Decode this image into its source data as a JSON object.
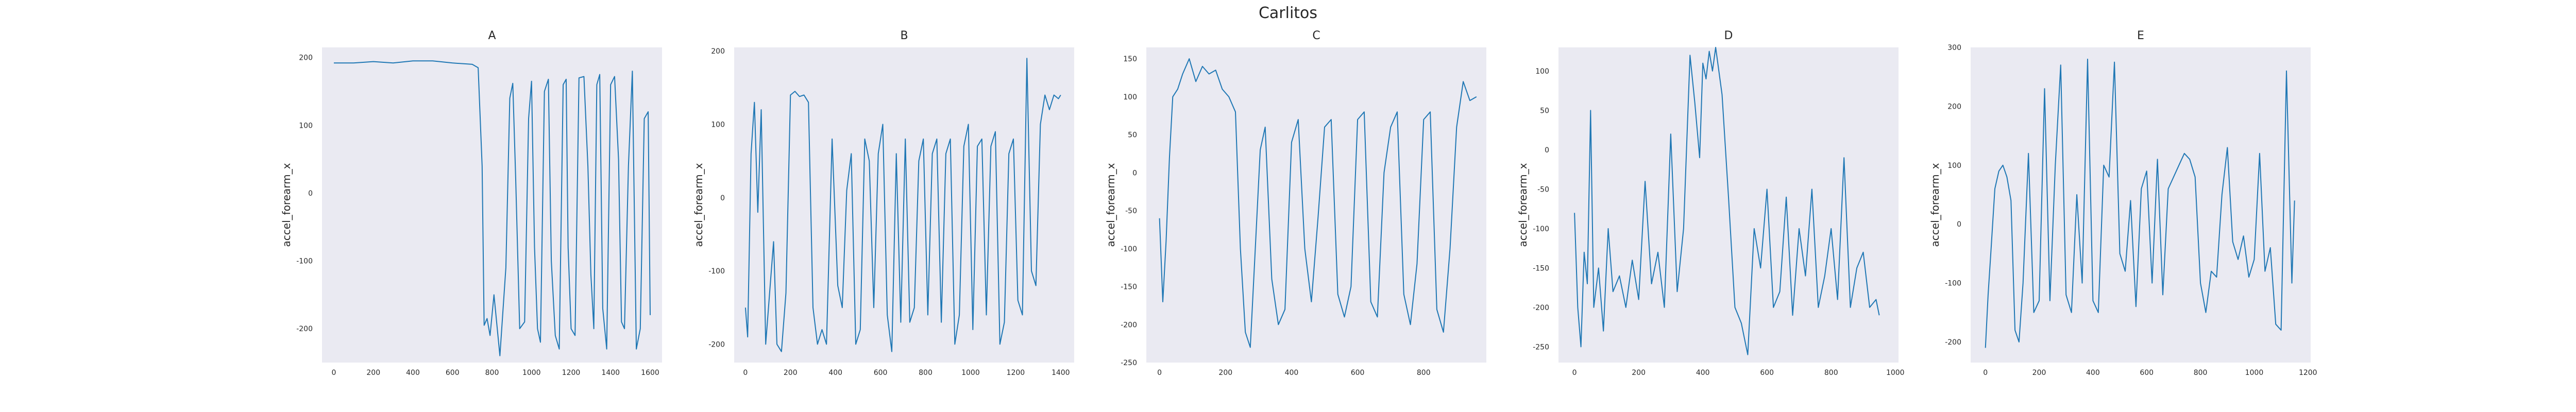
{
  "figure": {
    "title": "Carlitos",
    "background": "#ffffff",
    "plot_bg": "#eaeaf2",
    "line_color": "#1f77b4"
  },
  "chart_data": [
    {
      "type": "line",
      "title": "A",
      "xlabel": "",
      "ylabel": "accel_forearm_x",
      "xlim": [
        -60,
        1660
      ],
      "ylim": [
        -250,
        215
      ],
      "xticks": [
        0,
        200,
        400,
        600,
        800,
        1000,
        1200,
        1400,
        1600
      ],
      "yticks": [
        -200,
        -100,
        0,
        100,
        200
      ],
      "grid": false,
      "series": [
        {
          "x": [
            0,
            100,
            200,
            300,
            400,
            500,
            600,
            700,
            730,
            750,
            760,
            775,
            790,
            810,
            840,
            870,
            890,
            905,
            920,
            940,
            965,
            985,
            1000,
            1015,
            1030,
            1045,
            1065,
            1085,
            1100,
            1120,
            1140,
            1160,
            1175,
            1185,
            1200,
            1220,
            1240,
            1265,
            1285,
            1300,
            1315,
            1330,
            1345,
            1360,
            1380,
            1400,
            1420,
            1440,
            1455,
            1470,
            1490,
            1510,
            1530,
            1550,
            1570,
            1590,
            1600
          ],
          "values": [
            192,
            192,
            194,
            192,
            195,
            195,
            192,
            190,
            185,
            40,
            -195,
            -185,
            -210,
            -150,
            -240,
            -110,
            140,
            162,
            20,
            -200,
            -190,
            110,
            165,
            -80,
            -200,
            -220,
            150,
            168,
            -100,
            -210,
            -230,
            160,
            168,
            -80,
            -200,
            -210,
            170,
            172,
            40,
            -120,
            -200,
            160,
            175,
            -170,
            -230,
            160,
            172,
            50,
            -190,
            -200,
            40,
            180,
            -230,
            -200,
            110,
            120,
            -180
          ]
        }
      ]
    },
    {
      "type": "line",
      "title": "B",
      "xlabel": "",
      "ylabel": "accel_forearm_x",
      "xlim": [
        -50,
        1460
      ],
      "ylim": [
        -225,
        205
      ],
      "xticks": [
        0,
        200,
        400,
        600,
        800,
        1000,
        1200,
        1400
      ],
      "yticks": [
        -200,
        -100,
        0,
        100,
        200
      ],
      "grid": false,
      "series": [
        {
          "x": [
            0,
            10,
            25,
            40,
            55,
            70,
            90,
            110,
            125,
            140,
            160,
            180,
            200,
            220,
            240,
            260,
            280,
            300,
            320,
            340,
            360,
            385,
            410,
            430,
            450,
            470,
            490,
            510,
            530,
            550,
            570,
            590,
            610,
            630,
            650,
            670,
            690,
            710,
            730,
            750,
            770,
            790,
            810,
            830,
            850,
            870,
            890,
            910,
            930,
            950,
            970,
            990,
            1010,
            1030,
            1050,
            1070,
            1090,
            1110,
            1130,
            1150,
            1170,
            1190,
            1210,
            1230,
            1250,
            1270,
            1290,
            1310,
            1330,
            1350,
            1370,
            1390,
            1400
          ],
          "values": [
            -150,
            -190,
            60,
            130,
            -20,
            120,
            -200,
            -120,
            -60,
            -200,
            -210,
            -130,
            140,
            145,
            138,
            140,
            130,
            -150,
            -200,
            -180,
            -200,
            80,
            -120,
            -150,
            10,
            60,
            -200,
            -180,
            80,
            50,
            -150,
            60,
            100,
            -160,
            -210,
            60,
            -170,
            80,
            -170,
            -150,
            50,
            80,
            -160,
            60,
            80,
            -170,
            60,
            80,
            -200,
            -160,
            70,
            100,
            -180,
            70,
            80,
            -160,
            70,
            90,
            -200,
            -170,
            60,
            80,
            -140,
            -160,
            190,
            -100,
            -120,
            100,
            140,
            120,
            140,
            135,
            140
          ]
        }
      ]
    },
    {
      "type": "line",
      "title": "C",
      "xlabel": "",
      "ylabel": "accel_forearm_x",
      "xlim": [
        -40,
        990
      ],
      "ylim": [
        -250,
        165
      ],
      "xticks": [
        0,
        200,
        400,
        600,
        800
      ],
      "yticks": [
        -250,
        -200,
        -150,
        -100,
        -50,
        0,
        50,
        100,
        150
      ],
      "grid": false,
      "series": [
        {
          "x": [
            0,
            10,
            20,
            30,
            40,
            55,
            70,
            90,
            110,
            130,
            150,
            170,
            190,
            210,
            230,
            245,
            260,
            275,
            290,
            305,
            320,
            340,
            360,
            380,
            400,
            420,
            440,
            460,
            480,
            500,
            520,
            540,
            560,
            580,
            600,
            620,
            640,
            660,
            680,
            700,
            720,
            740,
            760,
            780,
            800,
            820,
            840,
            860,
            880,
            900,
            920,
            940,
            960
          ],
          "values": [
            -60,
            -170,
            -90,
            20,
            100,
            110,
            130,
            150,
            120,
            140,
            130,
            135,
            110,
            100,
            80,
            -100,
            -210,
            -230,
            -100,
            30,
            60,
            -140,
            -200,
            -180,
            40,
            70,
            -100,
            -170,
            -60,
            60,
            70,
            -160,
            -190,
            -150,
            70,
            80,
            -170,
            -190,
            0,
            60,
            80,
            -160,
            -200,
            -120,
            70,
            80,
            -180,
            -210,
            -100,
            60,
            120,
            95,
            100
          ]
        }
      ]
    },
    {
      "type": "line",
      "title": "D",
      "xlabel": "",
      "ylabel": "accel_forearm_x",
      "xlim": [
        -50,
        1010
      ],
      "ylim": [
        -270,
        130
      ],
      "xticks": [
        0,
        200,
        400,
        600,
        800,
        1000
      ],
      "yticks": [
        -250,
        -200,
        -150,
        -100,
        -50,
        0,
        50,
        100
      ],
      "grid": false,
      "series": [
        {
          "x": [
            0,
            10,
            20,
            30,
            40,
            50,
            60,
            75,
            90,
            105,
            120,
            140,
            160,
            180,
            200,
            220,
            240,
            260,
            280,
            300,
            320,
            340,
            360,
            375,
            390,
            400,
            410,
            420,
            430,
            440,
            450,
            460,
            480,
            500,
            520,
            540,
            560,
            580,
            600,
            620,
            640,
            660,
            680,
            700,
            720,
            740,
            760,
            780,
            800,
            820,
            840,
            860,
            880,
            900,
            920,
            940,
            950
          ],
          "values": [
            -80,
            -200,
            -250,
            -130,
            -170,
            50,
            -200,
            -150,
            -230,
            -100,
            -180,
            -160,
            -200,
            -140,
            -190,
            -40,
            -170,
            -130,
            -200,
            20,
            -180,
            -100,
            120,
            60,
            -10,
            110,
            90,
            125,
            100,
            130,
            100,
            70,
            -60,
            -200,
            -220,
            -260,
            -100,
            -150,
            -50,
            -200,
            -180,
            -60,
            -210,
            -100,
            -160,
            -50,
            -200,
            -160,
            -100,
            -190,
            -10,
            -200,
            -150,
            -130,
            -200,
            -190,
            -210
          ]
        }
      ]
    },
    {
      "type": "line",
      "title": "E",
      "xlabel": "",
      "ylabel": "accel_forearm_x",
      "xlim": [
        -55,
        1210
      ],
      "ylim": [
        -235,
        300
      ],
      "xticks": [
        0,
        200,
        400,
        600,
        800,
        1000,
        1200
      ],
      "yticks": [
        -200,
        -100,
        0,
        100,
        200,
        300
      ],
      "grid": false,
      "series": [
        {
          "x": [
            0,
            10,
            20,
            35,
            50,
            65,
            80,
            95,
            110,
            125,
            140,
            160,
            180,
            200,
            220,
            240,
            260,
            280,
            300,
            320,
            340,
            360,
            380,
            400,
            420,
            440,
            460,
            480,
            500,
            520,
            540,
            560,
            580,
            600,
            620,
            640,
            660,
            680,
            700,
            720,
            740,
            760,
            780,
            800,
            820,
            840,
            860,
            880,
            900,
            920,
            940,
            960,
            980,
            1000,
            1020,
            1040,
            1060,
            1080,
            1100,
            1120,
            1140,
            1150
          ],
          "values": [
            -210,
            -120,
            -50,
            60,
            90,
            100,
            80,
            40,
            -180,
            -200,
            -100,
            120,
            -150,
            -130,
            230,
            -130,
            100,
            270,
            -120,
            -150,
            50,
            -100,
            280,
            -130,
            -150,
            100,
            80,
            275,
            -50,
            -80,
            40,
            -140,
            60,
            90,
            -100,
            110,
            -120,
            60,
            80,
            100,
            120,
            110,
            80,
            -100,
            -150,
            -80,
            -90,
            50,
            130,
            -30,
            -60,
            -20,
            -90,
            -60,
            120,
            -80,
            -40,
            -170,
            -180,
            260,
            -100,
            40
          ]
        }
      ]
    }
  ]
}
